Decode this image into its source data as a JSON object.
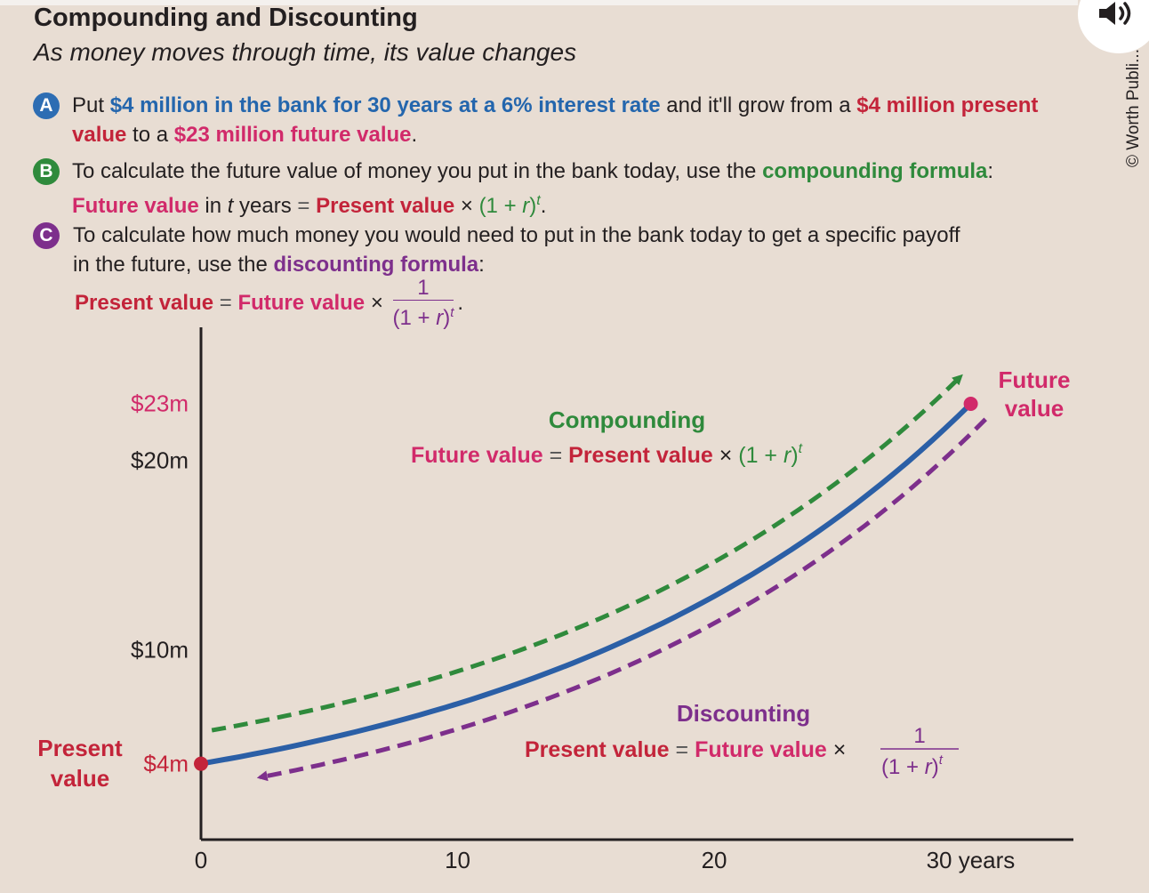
{
  "header": {
    "title": "Compounding and Discounting",
    "subtitle": "As money moves through time, its value changes"
  },
  "copyright": "© Worth Publi...",
  "icons": {
    "speaker": "speaker-volume-icon"
  },
  "points": {
    "a": {
      "badge": "A",
      "l1": {
        "t0": "Put ",
        "t1": "$4 million in the bank for 30 years at a 6% interest rate",
        "t2": " and it'll grow from a ",
        "t3": "$4 million present"
      },
      "l2": {
        "t0": "value",
        "t1": " to a ",
        "t2": "$23 million future value",
        "t3": "."
      }
    },
    "b": {
      "badge": "B",
      "l1": {
        "t0": "To calculate the future value of money you put in the bank today, use the ",
        "t1": "compounding formula",
        "t2": ":"
      },
      "l2": {
        "t0": "Future value",
        "t1": " in ",
        "t2": "t",
        "t3": " years ",
        "t4": "=",
        "t5": "Present value",
        "t6": " × ",
        "t7": "(1 + ",
        "t8": "r",
        "t9": ")",
        "t10": "t",
        "t11": "."
      }
    },
    "c": {
      "badge": "C",
      "l1": {
        "t0": "To calculate how much money you would need to put in the bank today to get a specific payoff"
      },
      "l2": {
        "t0": "in the future, use the ",
        "t1": "discounting formula",
        "t2": ":"
      },
      "formula": {
        "pv": "Present value",
        "eq": " = ",
        "fv": "Future value",
        "times": " × ",
        "num": "1",
        "den_a": "(1 + ",
        "den_r": "r",
        "den_b": ")",
        "den_t": "t",
        "end": "."
      }
    }
  },
  "colors": {
    "compounding": "#2f8a3c",
    "discounting": "#7d2f8c",
    "curve": "#2b5fa6",
    "present_value": "#c3243a",
    "future_value": "#d12a6a",
    "background": "#e8ddd3"
  },
  "chart_data": {
    "type": "line",
    "title": "",
    "xlabel": "",
    "ylabel": "",
    "x": [
      0,
      5,
      10,
      15,
      20,
      25,
      30
    ],
    "series": [
      {
        "values": [
          4,
          5.35,
          7.16,
          9.59,
          12.83,
          17.17,
          22.97
        ]
      }
    ],
    "xlim": [
      0,
      34
    ],
    "ylim": [
      0,
      27
    ],
    "x_ticks": [
      "0",
      "10",
      "20",
      "30 years"
    ],
    "x_tick_values": [
      0,
      10,
      20,
      30
    ],
    "y_ticks": [
      "$4m",
      "$10m",
      "$20m",
      "$23m"
    ],
    "y_tick_values": [
      4,
      10,
      20,
      23
    ],
    "grid": false,
    "arrows": {
      "compounding": {
        "direction": "toward future",
        "style": "dashed"
      },
      "discounting": {
        "direction": "toward present",
        "style": "dashed"
      }
    },
    "endpoint_labels": {
      "start": [
        "Present",
        "value"
      ],
      "end": [
        "Future",
        "value"
      ]
    },
    "annotations": {
      "compounding": {
        "title": "Compounding",
        "fv": "Future value",
        "eq": " = ",
        "pv": "Present value",
        "times": " × ",
        "base": "(1 + ",
        "r": "r",
        "close": ")",
        "t": "t"
      },
      "discounting": {
        "title": "Discounting",
        "pv": "Present value",
        "eq": " = ",
        "fv": "Future value",
        "times": " × ",
        "num": "1",
        "den_a": "(1 + ",
        "den_r": "r",
        "den_b": ")",
        "den_t": "t"
      }
    }
  }
}
